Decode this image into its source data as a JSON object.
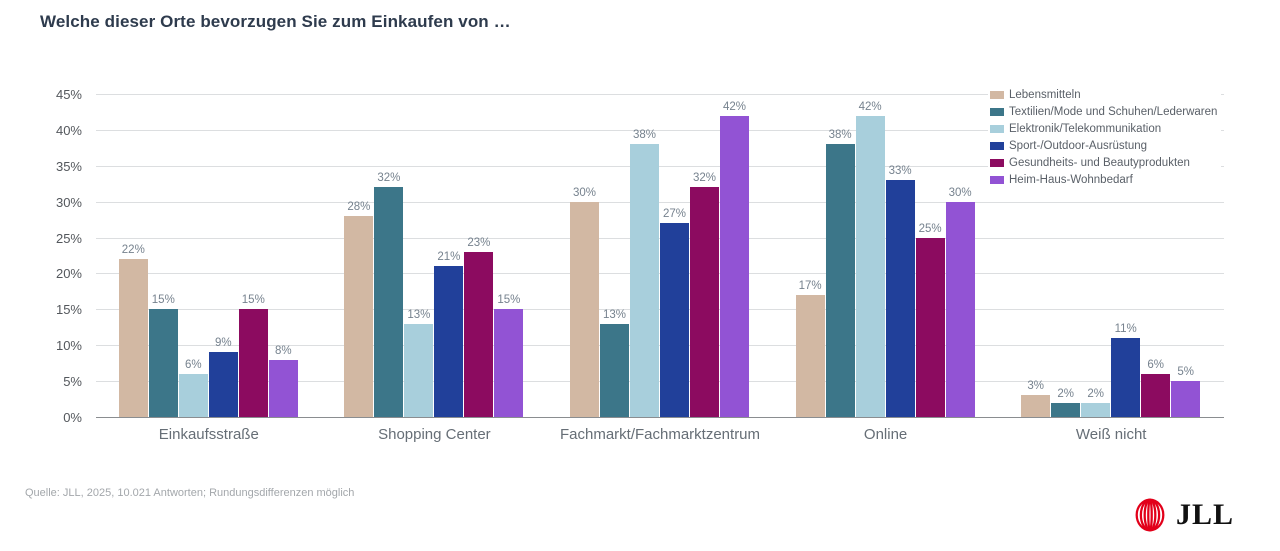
{
  "title": "Welche dieser Orte bevorzugen Sie zum Einkaufen von …",
  "chart_data": {
    "type": "bar",
    "categories": [
      "Einkaufsstraße",
      "Shopping Center",
      "Fachmarkt/Fachmarktzentrum",
      "Online",
      "Weiß nicht"
    ],
    "series": [
      {
        "name": "Lebensmitteln",
        "color": "#d2b8a3",
        "values": [
          22,
          28,
          30,
          17,
          3
        ]
      },
      {
        "name": "Textilien/Mode und Schuhen/Lederwaren",
        "color": "#3c7689",
        "values": [
          15,
          32,
          13,
          38,
          2
        ]
      },
      {
        "name": "Elektronik/Telekommunikation",
        "color": "#a8cfdc",
        "values": [
          6,
          13,
          38,
          42,
          2
        ]
      },
      {
        "name": "Sport-/Outdoor-Ausrüstung",
        "color": "#21409a",
        "values": [
          9,
          21,
          27,
          33,
          11
        ]
      },
      {
        "name": "Gesundheits- und Beautyprodukten",
        "color": "#8c0b60",
        "values": [
          15,
          23,
          32,
          25,
          6
        ]
      },
      {
        "name": "Heim-Haus-Wohnbedarf",
        "color": "#9253d4",
        "values": [
          8,
          15,
          42,
          30,
          5
        ]
      }
    ],
    "ylim": [
      0,
      45
    ],
    "ytick_step": 5,
    "yticks": [
      "0%",
      "5%",
      "10%",
      "15%",
      "20%",
      "25%",
      "30%",
      "35%",
      "40%",
      "45%"
    ],
    "value_suffix": "%",
    "grid": true,
    "legend_position": "top-right",
    "xlabel": "",
    "ylabel": ""
  },
  "footer": {
    "source": "Quelle: JLL, 2025, 10.021 Antworten; Rundungsdifferenzen möglich",
    "logo_text": "JLL"
  },
  "style": {
    "logo_red": "#e2001a",
    "title_color": "#2e3b4d",
    "grid_color": "#dcdee0",
    "axis_color": "#8a8d90"
  }
}
